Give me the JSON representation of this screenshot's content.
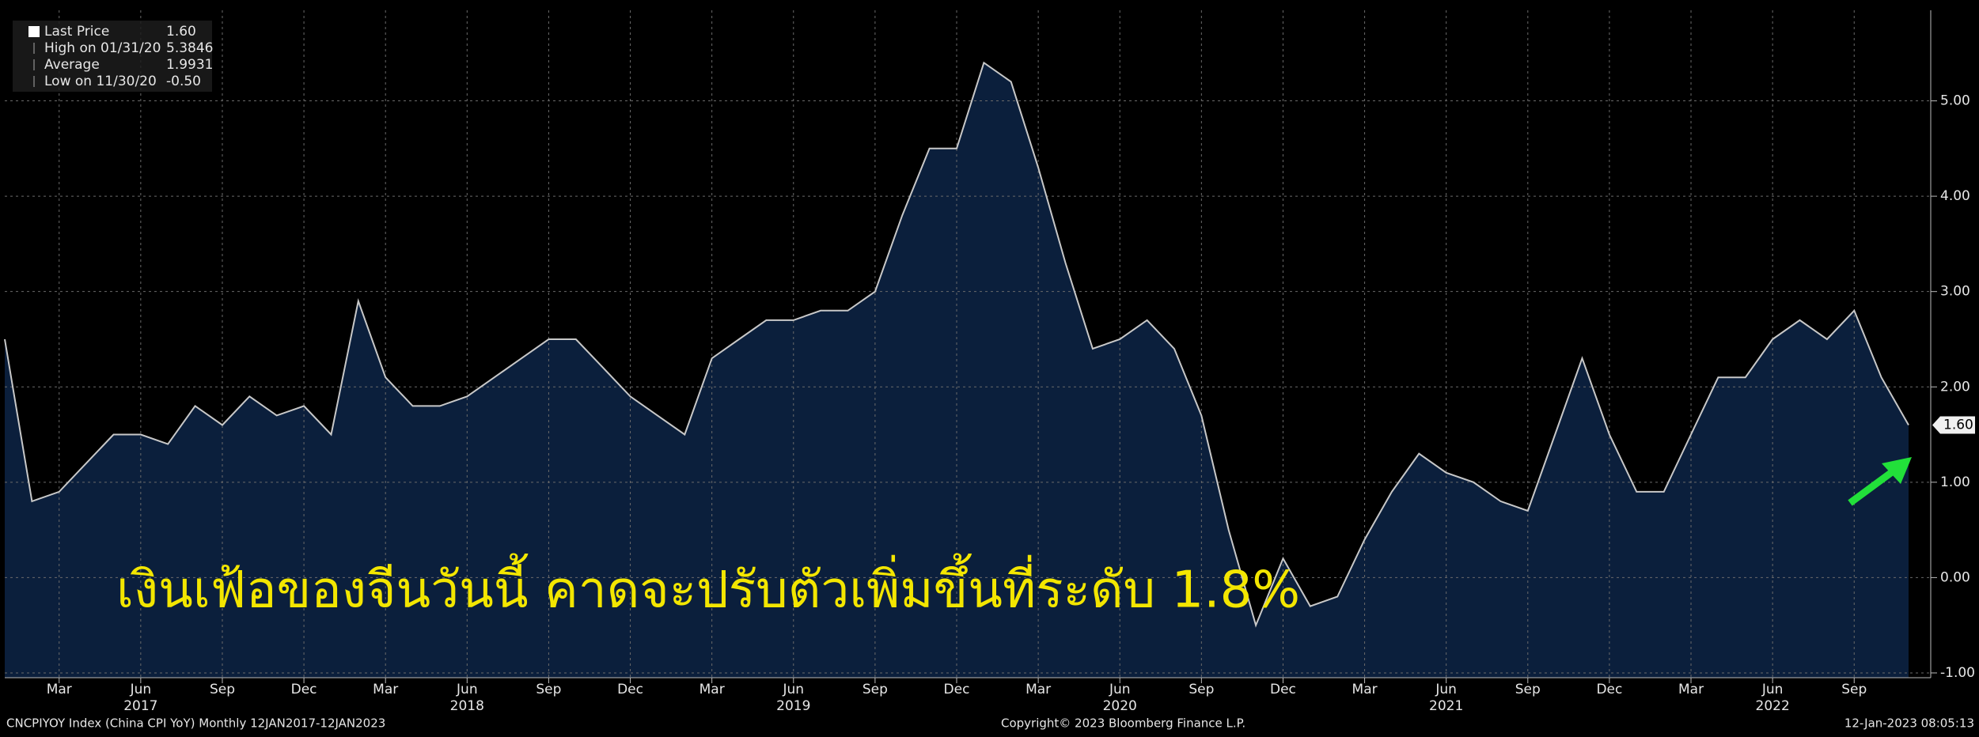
{
  "chart_data": {
    "type": "area",
    "annotation": "เงินเฟ้อของจีนวันนี้ คาดจะปรับตัวเพิ่มขึ้นที่ระดับ 1.8%",
    "legend": [
      {
        "label": "Last Price",
        "value": "1.60"
      },
      {
        "label": "High on 01/31/20",
        "value": "5.3846"
      },
      {
        "label": "Average",
        "value": "1.9931"
      },
      {
        "label": "Low on 11/30/20",
        "value": "-0.50"
      }
    ],
    "footer_left": "CNCPIYOY Index (China CPI YoY)  Monthly 12JAN2017-12JAN2023",
    "footer_center": "Copyright© 2023 Bloomberg Finance L.P.",
    "footer_right": "12-Jan-2023 08:05:13",
    "x": [
      "2017-01",
      "2017-02",
      "2017-03",
      "2017-04",
      "2017-05",
      "2017-06",
      "2017-07",
      "2017-08",
      "2017-09",
      "2017-10",
      "2017-11",
      "2017-12",
      "2018-01",
      "2018-02",
      "2018-03",
      "2018-04",
      "2018-05",
      "2018-06",
      "2018-07",
      "2018-08",
      "2018-09",
      "2018-10",
      "2018-11",
      "2018-12",
      "2019-01",
      "2019-02",
      "2019-03",
      "2019-04",
      "2019-05",
      "2019-06",
      "2019-07",
      "2019-08",
      "2019-09",
      "2019-10",
      "2019-11",
      "2019-12",
      "2020-01",
      "2020-02",
      "2020-03",
      "2020-04",
      "2020-05",
      "2020-06",
      "2020-07",
      "2020-08",
      "2020-09",
      "2020-10",
      "2020-11",
      "2020-12",
      "2021-01",
      "2021-02",
      "2021-03",
      "2021-04",
      "2021-05",
      "2021-06",
      "2021-07",
      "2021-08",
      "2021-09",
      "2021-10",
      "2021-11",
      "2021-12",
      "2022-01",
      "2022-02",
      "2022-03",
      "2022-04",
      "2022-05",
      "2022-06",
      "2022-07",
      "2022-08",
      "2022-09",
      "2022-10",
      "2022-11"
    ],
    "series": [
      {
        "name": "Last Price",
        "color": "#c8c8c8",
        "fill": "#0b1f3c",
        "values": [
          2.5,
          0.8,
          0.9,
          1.2,
          1.5,
          1.5,
          1.4,
          1.8,
          1.6,
          1.9,
          1.7,
          1.8,
          1.5,
          2.9,
          2.1,
          1.8,
          1.8,
          1.9,
          2.1,
          2.3,
          2.5,
          2.5,
          2.2,
          1.9,
          1.7,
          1.5,
          2.3,
          2.5,
          2.7,
          2.7,
          2.8,
          2.8,
          3.0,
          3.8,
          4.5,
          4.5,
          5.4,
          5.2,
          4.3,
          3.3,
          2.4,
          2.5,
          2.7,
          2.4,
          1.7,
          0.5,
          -0.5,
          0.2,
          -0.3,
          -0.2,
          0.4,
          0.9,
          1.3,
          1.1,
          1.0,
          0.8,
          0.7,
          1.5,
          2.3,
          1.5,
          0.9,
          0.9,
          1.5,
          2.1,
          2.1,
          2.5,
          2.7,
          2.5,
          2.8,
          2.1,
          1.6
        ]
      }
    ],
    "xticks": [
      {
        "value": "2017-03",
        "label": "Mar"
      },
      {
        "value": "2017-06",
        "label": "Jun"
      },
      {
        "value": "2017-09",
        "label": "Sep"
      },
      {
        "value": "2017-12",
        "label": "Dec"
      },
      {
        "value": "2018-03",
        "label": "Mar"
      },
      {
        "value": "2018-06",
        "label": "Jun"
      },
      {
        "value": "2018-09",
        "label": "Sep"
      },
      {
        "value": "2018-12",
        "label": "Dec"
      },
      {
        "value": "2019-03",
        "label": "Mar"
      },
      {
        "value": "2019-06",
        "label": "Jun"
      },
      {
        "value": "2019-09",
        "label": "Sep"
      },
      {
        "value": "2019-12",
        "label": "Dec"
      },
      {
        "value": "2020-03",
        "label": "Mar"
      },
      {
        "value": "2020-06",
        "label": "Jun"
      },
      {
        "value": "2020-09",
        "label": "Sep"
      },
      {
        "value": "2020-12",
        "label": "Dec"
      },
      {
        "value": "2021-03",
        "label": "Mar"
      },
      {
        "value": "2021-06",
        "label": "Jun"
      },
      {
        "value": "2021-09",
        "label": "Sep"
      },
      {
        "value": "2021-12",
        "label": "Dec"
      },
      {
        "value": "2022-03",
        "label": "Mar"
      },
      {
        "value": "2022-06",
        "label": "Jun"
      },
      {
        "value": "2022-09",
        "label": "Sep"
      }
    ],
    "years": [
      2017,
      2018,
      2019,
      2020,
      2021,
      2022
    ],
    "ylim": [
      -1.05,
      5.95
    ],
    "yticks": [
      {
        "value": -1,
        "label": "-1.00"
      },
      {
        "value": 0,
        "label": "0.00"
      },
      {
        "value": 1,
        "label": "1.00"
      },
      {
        "value": 2,
        "label": "2.00"
      },
      {
        "value": 3,
        "label": "3.00"
      },
      {
        "value": 4,
        "label": "4.00"
      },
      {
        "value": 5,
        "label": "5.00"
      }
    ],
    "grid": true
  }
}
